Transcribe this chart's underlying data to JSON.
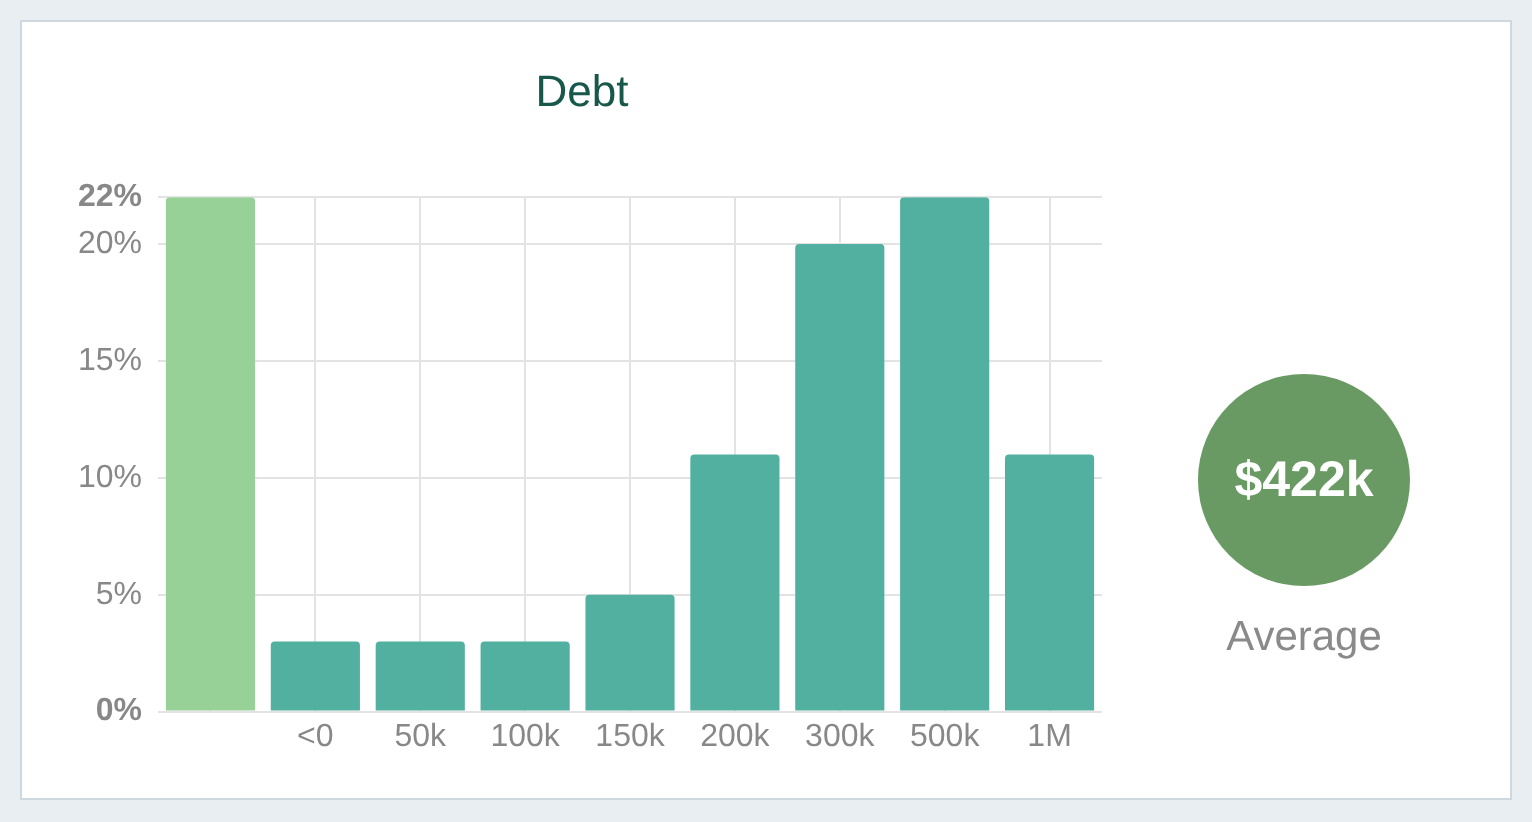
{
  "chart_data": {
    "type": "bar",
    "title": "Debt",
    "categories": [
      null,
      "<0",
      "50k",
      "100k",
      "150k",
      "200k",
      "300k",
      "500k",
      "1M"
    ],
    "values": [
      22,
      3,
      3,
      3,
      5,
      11,
      20,
      22,
      11
    ],
    "colors": [
      "#98d198",
      "#52b0a0",
      "#52b0a0",
      "#52b0a0",
      "#52b0a0",
      "#52b0a0",
      "#52b0a0",
      "#52b0a0",
      "#52b0a0"
    ],
    "ylim": [
      0,
      22
    ],
    "yticks": [
      {
        "value": 0,
        "label": "0%"
      },
      {
        "value": 5,
        "label": "5%"
      },
      {
        "value": 10,
        "label": "10%"
      },
      {
        "value": 15,
        "label": "15%"
      },
      {
        "value": 20,
        "label": "20%"
      },
      {
        "value": 22,
        "label": "22%"
      }
    ],
    "grid": true,
    "legend": false,
    "annotations": [
      "$422k",
      "Average"
    ]
  }
}
